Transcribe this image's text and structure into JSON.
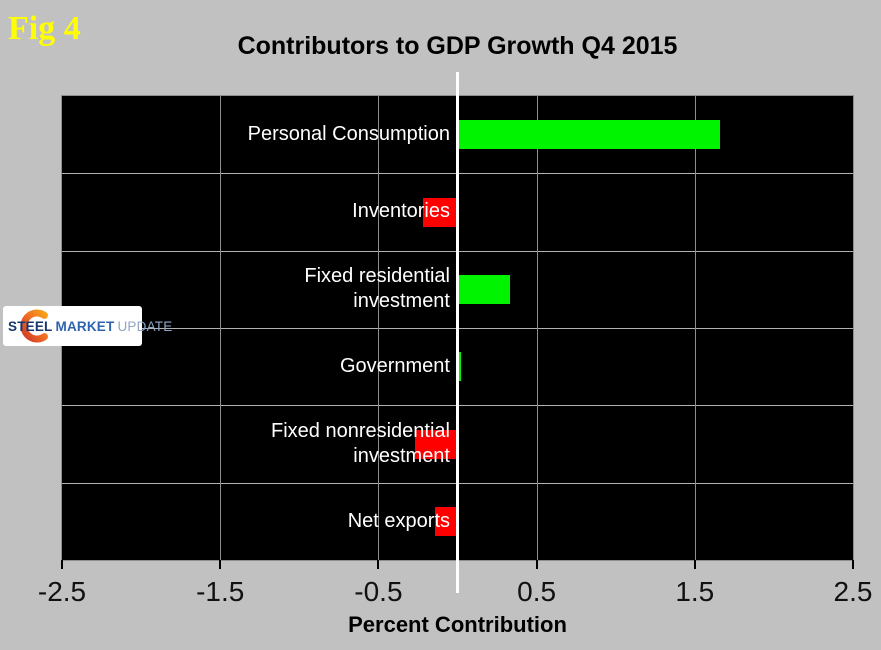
{
  "figure_label": "Fig 4",
  "logo": {
    "steel": "STEEL",
    "market": "MARKET",
    "update": "UPDATE"
  },
  "colors": {
    "background": "#c1c1c1",
    "plot_background": "#000000",
    "positive_bar": "#00f400",
    "negative_bar": "#ff0000",
    "zero_line": "#ffffff",
    "fig_label_text": "#ffff00",
    "category_text": "#ffffff",
    "logo_steel": "#16356e",
    "logo_market": "#2d64ad",
    "logo_update": "#8fa6c6"
  },
  "chart_data": {
    "type": "bar",
    "orientation": "horizontal",
    "title": "Contributors to GDP Growth Q4 2015",
    "xlabel": "Percent Contribution",
    "xlim": [
      -2.5,
      2.5
    ],
    "xticks": [
      -2.5,
      -1.5,
      -0.5,
      0.5,
      1.5,
      2.5
    ],
    "xtick_labels": [
      "-2.5",
      "-1.5",
      "-0.5",
      "0.5",
      "1.5",
      "2.5"
    ],
    "grid_x": [
      -1.5,
      -0.5,
      0.5,
      1.5
    ],
    "grid": true,
    "legend": false,
    "categories": [
      "Personal Consumption",
      "Inventories",
      "Fixed residential investment",
      "Government",
      "Fixed nonresidential investment",
      "Net exports"
    ],
    "label_lines": [
      [
        "Personal Consumption"
      ],
      [
        "Inventories"
      ],
      [
        "Fixed residential",
        "investment"
      ],
      [
        "Government"
      ],
      [
        "Fixed nonresidential",
        "investment"
      ],
      [
        "Net exports"
      ]
    ],
    "values": [
      1.66,
      -0.22,
      0.33,
      0.02,
      -0.27,
      -0.14
    ]
  }
}
